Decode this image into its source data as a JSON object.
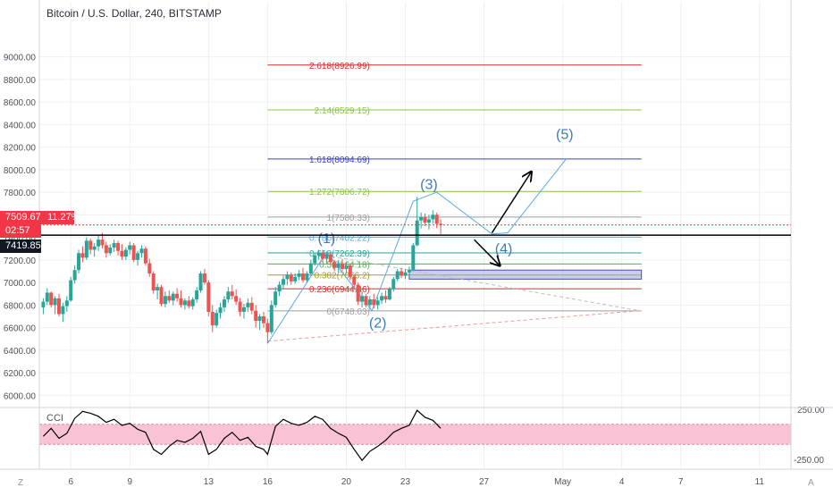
{
  "header": {
    "title": "Bitcoin / U.S. Dollar, 240, BITSTAMP"
  },
  "price_tags": {
    "last_price": "7509.67",
    "change_pct": "11.27%",
    "countdown": "02:57",
    "crosshair_price": "7419.85"
  },
  "indicator": {
    "label": "CCI",
    "upper_level": "250.00",
    "lower_level": "-250.00"
  },
  "corners": {
    "left": "Z",
    "right": "A"
  },
  "colors": {
    "up": "#26a69a",
    "down": "#ef5350",
    "wave": "#3d7bb8",
    "fib_2618": "#d32f2f",
    "fib_214": "#8bc34a",
    "fib_1618": "#3f3fbf",
    "fib_1272": "#8bc34a",
    "fib_1": "#9e9e9e",
    "fib_0786": "#5aa9e6",
    "fib_0618": "#26a69a",
    "fib_05": "#4caf50",
    "fib_0382": "#9e9d24",
    "fib_0236": "#d32f2f",
    "fib_0": "#9e9e9e",
    "cci_band": "#f8bbd0"
  },
  "chart_data": {
    "type": "line",
    "title": "Bitcoin / U.S. Dollar, 240, BITSTAMP",
    "ylim": [
      5900,
      9250
    ],
    "y_ticks": [
      "9000.00",
      "8800.00",
      "8600.00",
      "8400.00",
      "8200.00",
      "8000.00",
      "7800.00",
      "7600.00",
      "7400.00",
      "7200.00",
      "7000.00",
      "6800.00",
      "6600.00",
      "6400.00",
      "6200.00",
      "6000.00"
    ],
    "y_tick_values": [
      9000,
      8800,
      8600,
      8400,
      8200,
      8000,
      7800,
      7600,
      7400,
      7200,
      7000,
      6800,
      6600,
      6400,
      6200,
      6000
    ],
    "x_ticks": [
      "6",
      "9",
      "13",
      "16",
      "20",
      "23",
      "27",
      "May",
      "4",
      "7",
      "11"
    ],
    "x_tick_days": [
      6,
      9,
      13,
      16,
      20,
      23,
      27,
      31,
      34,
      37,
      41
    ],
    "xlim_days": [
      4.4,
      42.6
    ],
    "fib_levels": [
      {
        "label": "2.618(8926.99)",
        "value": 8926.99,
        "color_key": "fib_2618"
      },
      {
        "label": "2.14(8529.15)",
        "value": 8529.15,
        "color_key": "fib_214"
      },
      {
        "label": "1.618(8094.69)",
        "value": 8094.69,
        "color_key": "fib_1618"
      },
      {
        "label": "1.272(7806.72)",
        "value": 7806.72,
        "color_key": "fib_1272"
      },
      {
        "label": "1(7580.33)",
        "value": 7580.33,
        "color_key": "fib_1"
      },
      {
        "label": "0.786(7402.22)",
        "value": 7402.22,
        "color_key": "fib_0786"
      },
      {
        "label": "0.618(7262.39)",
        "value": 7262.39,
        "color_key": "fib_0618"
      },
      {
        "label": "0.5(7164.18)",
        "value": 7164.18,
        "color_key": "fib_05"
      },
      {
        "label": "0.382(7066.2)",
        "value": 7066.2,
        "color_key": "fib_0382"
      },
      {
        "label": "0.236(6944.46)",
        "value": 6944.46,
        "color_key": "fib_0236"
      },
      {
        "label": "0(6748.03)",
        "value": 6748.03,
        "color_key": "fib_0"
      }
    ],
    "fib_x_days": [
      16.0,
      35.0
    ],
    "waves": [
      {
        "label": "(1)",
        "day": 19.0,
        "price": 7350
      },
      {
        "label": "(2)",
        "day": 21.6,
        "price": 6600
      },
      {
        "label": "(3)",
        "day": 24.2,
        "price": 7830
      },
      {
        "label": "(4)",
        "day": 28.0,
        "price": 7260
      },
      {
        "label": "(5)",
        "day": 31.1,
        "price": 8270
      }
    ],
    "wave_path": [
      [
        16.0,
        6460
      ],
      [
        19.0,
        7270
      ],
      [
        21.3,
        6750
      ],
      [
        23.4,
        7720
      ],
      [
        24.6,
        7800
      ],
      [
        27.4,
        7430
      ],
      [
        28.2,
        7440
      ],
      [
        31.2,
        8100
      ]
    ],
    "arrows": [
      [
        [
          27.4,
          7440
        ],
        [
          29.4,
          7980
        ]
      ],
      [
        [
          26.5,
          7380
        ],
        [
          27.8,
          7150
        ]
      ]
    ],
    "trendline": [
      [
        16.0,
        6480
      ],
      [
        34.9,
        6750
      ]
    ],
    "trendline_upper": [
      [
        18.0,
        7270
      ],
      [
        34.9,
        6750
      ]
    ],
    "rectangle": {
      "day_from": 23.2,
      "day_to": 35.0,
      "price_from": 7030,
      "price_to": 7110
    },
    "candles": [
      [
        4.6,
        6780,
        6860,
        6720,
        6830
      ],
      [
        4.8,
        6830,
        6950,
        6800,
        6910
      ],
      [
        5.0,
        6910,
        6920,
        6780,
        6800
      ],
      [
        5.2,
        6800,
        6880,
        6720,
        6860
      ],
      [
        5.4,
        6860,
        6900,
        6700,
        6720
      ],
      [
        5.6,
        6720,
        6820,
        6650,
        6790
      ],
      [
        5.8,
        6790,
        6880,
        6740,
        6840
      ],
      [
        6.0,
        6840,
        7050,
        6830,
        7020
      ],
      [
        6.2,
        7020,
        7150,
        6990,
        7110
      ],
      [
        6.4,
        7110,
        7290,
        7080,
        7260
      ],
      [
        6.6,
        7260,
        7320,
        7180,
        7220
      ],
      [
        6.8,
        7220,
        7400,
        7200,
        7370
      ],
      [
        7.0,
        7370,
        7390,
        7250,
        7290
      ],
      [
        7.2,
        7290,
        7350,
        7230,
        7320
      ],
      [
        7.4,
        7320,
        7420,
        7280,
        7380
      ],
      [
        7.6,
        7380,
        7440,
        7300,
        7330
      ],
      [
        7.8,
        7330,
        7360,
        7220,
        7260
      ],
      [
        8.0,
        7260,
        7340,
        7240,
        7310
      ],
      [
        8.2,
        7310,
        7380,
        7270,
        7350
      ],
      [
        8.4,
        7350,
        7370,
        7240,
        7280
      ],
      [
        8.6,
        7280,
        7340,
        7200,
        7230
      ],
      [
        8.8,
        7230,
        7310,
        7200,
        7290
      ],
      [
        9.0,
        7290,
        7360,
        7250,
        7330
      ],
      [
        9.2,
        7330,
        7350,
        7180,
        7200
      ],
      [
        9.4,
        7200,
        7280,
        7150,
        7260
      ],
      [
        9.6,
        7260,
        7330,
        7220,
        7300
      ],
      [
        9.8,
        7300,
        7320,
        7150,
        7170
      ],
      [
        10.0,
        7170,
        7210,
        7050,
        7080
      ],
      [
        10.2,
        7080,
        7100,
        6900,
        6930
      ],
      [
        10.4,
        6930,
        6990,
        6850,
        6960
      ],
      [
        10.6,
        6960,
        6980,
        6790,
        6810
      ],
      [
        10.8,
        6810,
        6920,
        6780,
        6880
      ],
      [
        11.0,
        6880,
        6930,
        6820,
        6840
      ],
      [
        11.2,
        6840,
        6920,
        6800,
        6900
      ],
      [
        11.4,
        6900,
        6950,
        6830,
        6860
      ],
      [
        11.6,
        6860,
        6930,
        6780,
        6800
      ],
      [
        11.8,
        6800,
        6860,
        6760,
        6840
      ],
      [
        12.0,
        6840,
        6880,
        6770,
        6790
      ],
      [
        12.2,
        6790,
        6870,
        6760,
        6850
      ],
      [
        12.4,
        6850,
        6960,
        6820,
        6930
      ],
      [
        12.6,
        6930,
        7100,
        6910,
        7080
      ],
      [
        12.8,
        7080,
        7120,
        6980,
        7000
      ],
      [
        13.0,
        7000,
        7020,
        6700,
        6740
      ],
      [
        13.2,
        6740,
        6800,
        6560,
        6620
      ],
      [
        13.4,
        6620,
        6760,
        6600,
        6730
      ],
      [
        13.6,
        6730,
        6820,
        6680,
        6780
      ],
      [
        13.8,
        6780,
        6880,
        6740,
        6850
      ],
      [
        14.0,
        6850,
        6960,
        6820,
        6920
      ],
      [
        14.2,
        6920,
        6980,
        6850,
        6880
      ],
      [
        14.4,
        6880,
        6940,
        6800,
        6830
      ],
      [
        14.6,
        6830,
        6860,
        6700,
        6740
      ],
      [
        14.8,
        6740,
        6810,
        6680,
        6780
      ],
      [
        15.0,
        6780,
        6860,
        6740,
        6820
      ],
      [
        15.2,
        6820,
        6870,
        6720,
        6750
      ],
      [
        15.4,
        6750,
        6800,
        6600,
        6660
      ],
      [
        15.6,
        6660,
        6720,
        6580,
        6700
      ],
      [
        15.8,
        6700,
        6740,
        6600,
        6640
      ],
      [
        16.0,
        6640,
        6680,
        6460,
        6560
      ],
      [
        16.2,
        6560,
        6840,
        6540,
        6800
      ],
      [
        16.4,
        6800,
        6960,
        6780,
        6920
      ],
      [
        16.6,
        6920,
        7010,
        6880,
        6980
      ],
      [
        16.8,
        6980,
        7060,
        6940,
        7030
      ],
      [
        17.0,
        7030,
        7100,
        6980,
        7070
      ],
      [
        17.2,
        7070,
        7090,
        6980,
        7010
      ],
      [
        17.4,
        7010,
        7080,
        6990,
        7050
      ],
      [
        17.6,
        7050,
        7110,
        7020,
        7080
      ],
      [
        17.8,
        7080,
        7130,
        7000,
        7020
      ],
      [
        18.0,
        7020,
        7100,
        7000,
        7080
      ],
      [
        18.2,
        7080,
        7200,
        7060,
        7170
      ],
      [
        18.4,
        7170,
        7260,
        7150,
        7240
      ],
      [
        18.6,
        7240,
        7290,
        7200,
        7260
      ],
      [
        18.8,
        7260,
        7290,
        7180,
        7210
      ],
      [
        19.0,
        7210,
        7270,
        7170,
        7250
      ],
      [
        19.2,
        7250,
        7260,
        7160,
        7180
      ],
      [
        19.4,
        7180,
        7200,
        7100,
        7130
      ],
      [
        19.6,
        7130,
        7200,
        7090,
        7170
      ],
      [
        19.8,
        7170,
        7210,
        7100,
        7120
      ],
      [
        20.0,
        7120,
        7180,
        7080,
        7150
      ],
      [
        20.2,
        7150,
        7170,
        7020,
        7050
      ],
      [
        20.4,
        7050,
        7070,
        6950,
        6980
      ],
      [
        20.6,
        6980,
        7000,
        6800,
        6830
      ],
      [
        20.8,
        6830,
        6920,
        6780,
        6880
      ],
      [
        21.0,
        6880,
        6900,
        6780,
        6800
      ],
      [
        21.2,
        6800,
        6880,
        6760,
        6850
      ],
      [
        21.4,
        6850,
        6900,
        6770,
        6800
      ],
      [
        21.6,
        6800,
        6870,
        6760,
        6840
      ],
      [
        21.8,
        6840,
        6910,
        6810,
        6880
      ],
      [
        22.0,
        6880,
        6930,
        6820,
        6850
      ],
      [
        22.2,
        6850,
        6960,
        6840,
        6940
      ],
      [
        22.4,
        6940,
        7050,
        6920,
        7030
      ],
      [
        22.6,
        7030,
        7120,
        7010,
        7100
      ],
      [
        22.8,
        7100,
        7130,
        7040,
        7060
      ],
      [
        23.0,
        7060,
        7120,
        7030,
        7090
      ],
      [
        23.2,
        7090,
        7140,
        7050,
        7110
      ],
      [
        23.4,
        7110,
        7350,
        7100,
        7330
      ],
      [
        23.6,
        7330,
        7760,
        7320,
        7550
      ],
      [
        23.8,
        7550,
        7620,
        7480,
        7580
      ],
      [
        24.0,
        7580,
        7610,
        7500,
        7530
      ],
      [
        24.2,
        7530,
        7600,
        7470,
        7560
      ],
      [
        24.4,
        7560,
        7640,
        7520,
        7600
      ],
      [
        24.6,
        7600,
        7620,
        7480,
        7520
      ],
      [
        24.8,
        7520,
        7560,
        7430,
        7510
      ]
    ],
    "cci_values": [
      [
        4.6,
        -20
      ],
      [
        5.0,
        60
      ],
      [
        5.4,
        -40
      ],
      [
        5.8,
        10
      ],
      [
        6.2,
        160
      ],
      [
        6.6,
        230
      ],
      [
        7.0,
        210
      ],
      [
        7.4,
        180
      ],
      [
        7.8,
        120
      ],
      [
        8.2,
        150
      ],
      [
        8.6,
        90
      ],
      [
        9.0,
        110
      ],
      [
        9.4,
        50
      ],
      [
        9.8,
        20
      ],
      [
        10.2,
        -150
      ],
      [
        10.6,
        -200
      ],
      [
        11.0,
        -120
      ],
      [
        11.4,
        -60
      ],
      [
        11.8,
        -80
      ],
      [
        12.2,
        -40
      ],
      [
        12.6,
        30
      ],
      [
        13.0,
        -200
      ],
      [
        13.4,
        -150
      ],
      [
        13.8,
        -40
      ],
      [
        14.2,
        20
      ],
      [
        14.6,
        -60
      ],
      [
        15.0,
        -30
      ],
      [
        15.4,
        -120
      ],
      [
        15.8,
        -150
      ],
      [
        16.0,
        -200
      ],
      [
        16.4,
        80
      ],
      [
        16.8,
        150
      ],
      [
        17.2,
        110
      ],
      [
        17.6,
        90
      ],
      [
        18.0,
        120
      ],
      [
        18.4,
        180
      ],
      [
        18.8,
        150
      ],
      [
        19.2,
        60
      ],
      [
        19.6,
        10
      ],
      [
        20.0,
        -30
      ],
      [
        20.4,
        -150
      ],
      [
        20.8,
        -260
      ],
      [
        21.2,
        -170
      ],
      [
        21.6,
        -120
      ],
      [
        22.0,
        -60
      ],
      [
        22.4,
        20
      ],
      [
        22.8,
        60
      ],
      [
        23.2,
        90
      ],
      [
        23.6,
        240
      ],
      [
        24.0,
        170
      ],
      [
        24.4,
        140
      ],
      [
        24.8,
        60
      ]
    ]
  }
}
